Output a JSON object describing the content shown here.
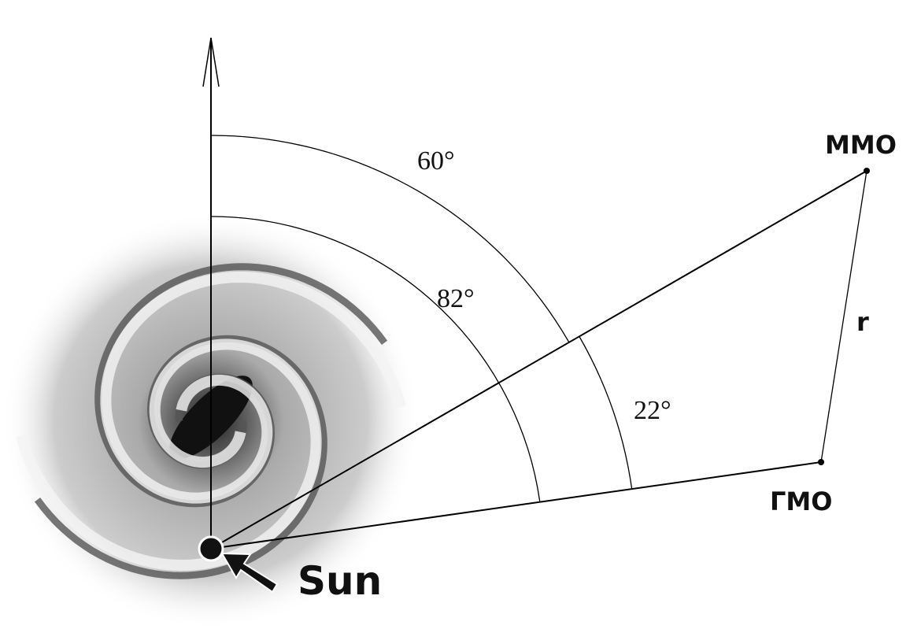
{
  "angles": [
    "60°",
    "82°",
    "22°"
  ],
  "points": [
    "MMO",
    "ГМО"
  ],
  "distance_label": "r",
  "sun_label": "Sun"
}
